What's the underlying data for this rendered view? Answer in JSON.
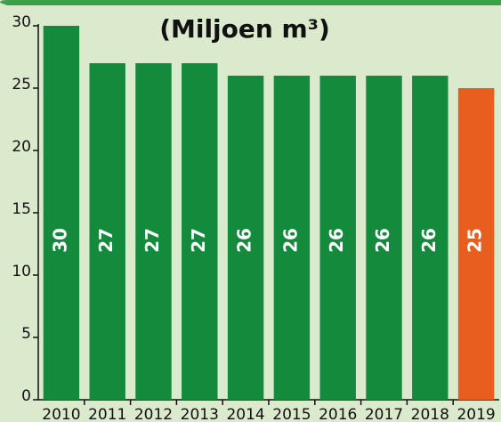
{
  "chart_data": {
    "type": "bar",
    "title": "(Miljoen m³)",
    "categories": [
      "2010",
      "2011",
      "2012",
      "2013",
      "2014",
      "2015",
      "2016",
      "2017",
      "2018",
      "2019"
    ],
    "values": [
      30,
      27,
      27,
      27,
      26,
      26,
      26,
      26,
      26,
      25
    ],
    "colors": [
      "#138a3c",
      "#138a3c",
      "#138a3c",
      "#138a3c",
      "#138a3c",
      "#138a3c",
      "#138a3c",
      "#138a3c",
      "#138a3c",
      "#e85e1f"
    ],
    "ylim": [
      0,
      30
    ],
    "yticks": [
      0,
      5,
      10,
      15,
      20,
      25,
      30
    ],
    "grid": false
  }
}
